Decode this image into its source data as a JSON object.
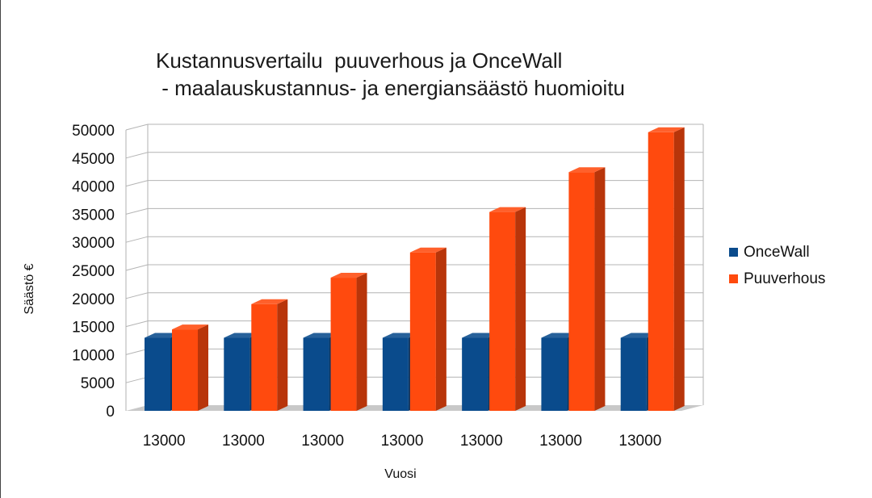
{
  "chart_data": {
    "type": "bar",
    "title": [
      "Kustannusvertailu  puuverhous ja OnceWall",
      " - maalauskustannus- ja energiansäästö huomioitu"
    ],
    "xlabel": "Vuosi",
    "ylabel": "Säästö €",
    "categories": [
      "13000",
      "13000",
      "13000",
      "13000",
      "13000",
      "13000",
      "13000"
    ],
    "ylim": [
      0,
      50000
    ],
    "yticks": [
      "0",
      "5000",
      "10000",
      "15000",
      "20000",
      "25000",
      "30000",
      "35000",
      "40000",
      "45000",
      "50000"
    ],
    "grid": true,
    "legend_position": "right",
    "series": [
      {
        "name": "OnceWall",
        "color": "#0a4b8c",
        "values": [
          13000,
          13000,
          13000,
          13000,
          13000,
          13000,
          13000
        ]
      },
      {
        "name": "Puuverhous",
        "color": "#ff4a0e",
        "values": [
          14500,
          19000,
          23700,
          28200,
          35400,
          42500,
          49600
        ]
      }
    ]
  }
}
